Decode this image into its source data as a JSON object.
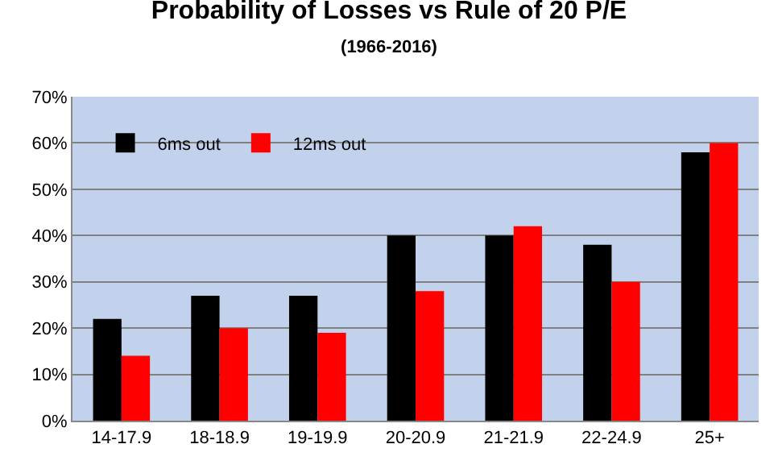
{
  "chart_data": {
    "type": "bar",
    "title": "Probability of Losses vs Rule of 20 P/E",
    "subtitle": "(1966-2016)",
    "categories": [
      "14-17.9",
      "18-18.9",
      "19-19.9",
      "20-20.9",
      "21-21.9",
      "22-24.9",
      "25+"
    ],
    "series": [
      {
        "name": "6ms out",
        "color": "#000000",
        "values": [
          22,
          27,
          27,
          40,
          40,
          38,
          58
        ]
      },
      {
        "name": "12ms out",
        "color": "#ff0000",
        "values": [
          14,
          20,
          19,
          28,
          42,
          30,
          60
        ]
      }
    ],
    "ylim": [
      0,
      70
    ],
    "yticks": [
      {
        "value": 0,
        "label": "0%"
      },
      {
        "value": 10,
        "label": "10%"
      },
      {
        "value": 20,
        "label": "20%"
      },
      {
        "value": 30,
        "label": "30%"
      },
      {
        "value": 40,
        "label": "40%"
      },
      {
        "value": 50,
        "label": "50%"
      },
      {
        "value": 60,
        "label": "60%"
      },
      {
        "value": 70,
        "label": "70%"
      }
    ],
    "grid": "y",
    "legend": "top left"
  }
}
